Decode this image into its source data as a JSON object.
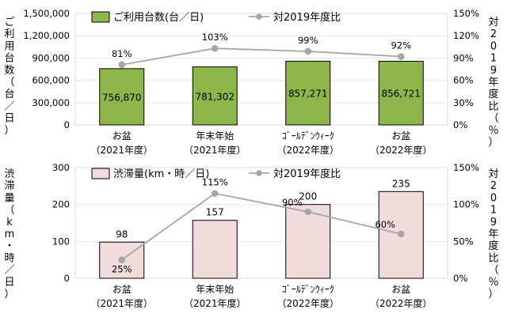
{
  "chart_data": [
    {
      "type": "bar",
      "categories": [
        {
          "line1": "お盆",
          "line2": "（2021年度）"
        },
        {
          "line1": "年末年始",
          "line2": "（2021年度）"
        },
        {
          "line1": "ｺﾞｰﾙﾃﾞﾝｳｨｰｸ",
          "line2": "（2022年度）"
        },
        {
          "line1": "お盆",
          "line2": "（2022年度）"
        }
      ],
      "ylabel": "ご利用台数（台／日）",
      "y2label": "対2019年度比（％）",
      "yticks": [
        "1,500,000",
        "1,200,000",
        "900,000",
        "600,000",
        "300,000",
        "0"
      ],
      "y2ticks": [
        "150%",
        "120%",
        "90%",
        "60%",
        "30%",
        "0%"
      ],
      "ylim": [
        0,
        1500000
      ],
      "y2lim": [
        0,
        150
      ],
      "legend": {
        "bar": "ご利用台数(台／日)",
        "line": "対2019年度比",
        "position": "top"
      },
      "series": [
        {
          "name": "ご利用台数(台／日)",
          "kind": "bar",
          "axis": "left",
          "values": [
            756870,
            781302,
            857271,
            856721
          ],
          "labels": [
            "756,870",
            "781,302",
            "857,271",
            "856,721"
          ],
          "color": "#8db64a"
        },
        {
          "name": "対2019年度比",
          "kind": "line",
          "axis": "right",
          "values": [
            81,
            103,
            99,
            92
          ],
          "labels": [
            "81%",
            "103%",
            "99%",
            "92%"
          ],
          "color": "#a6a6a6"
        }
      ]
    },
    {
      "type": "bar",
      "categories": [
        {
          "line1": "お盆",
          "line2": "（2021年度）"
        },
        {
          "line1": "年末年始",
          "line2": "（2021年度）"
        },
        {
          "line1": "ｺﾞｰﾙﾃﾞﾝｳｨｰｸ",
          "line2": "（2022年度）"
        },
        {
          "line1": "お盆",
          "line2": "（2022年度）"
        }
      ],
      "ylabel": "渋滞量（km・時／日）",
      "y2label": "対2019年度比（％）",
      "yticks": [
        "300",
        "200",
        "100",
        "0"
      ],
      "y2ticks": [
        "150%",
        "100%",
        "50%",
        "0%"
      ],
      "ylim": [
        0,
        300
      ],
      "y2lim": [
        0,
        150
      ],
      "legend": {
        "bar": "渋滞量(km・時／日)",
        "line": "対2019年度比",
        "position": "top"
      },
      "series": [
        {
          "name": "渋滞量(km・時／日)",
          "kind": "bar",
          "axis": "left",
          "values": [
            98,
            157,
            200,
            235
          ],
          "labels": [
            "98",
            "157",
            "200",
            "235"
          ],
          "color": "#f2dcdb"
        },
        {
          "name": "対2019年度比",
          "kind": "line",
          "axis": "right",
          "values": [
            25,
            115,
            90,
            60
          ],
          "labels": [
            "25%",
            "115%",
            "90%",
            "60%"
          ],
          "color": "#a6a6a6"
        }
      ]
    }
  ]
}
